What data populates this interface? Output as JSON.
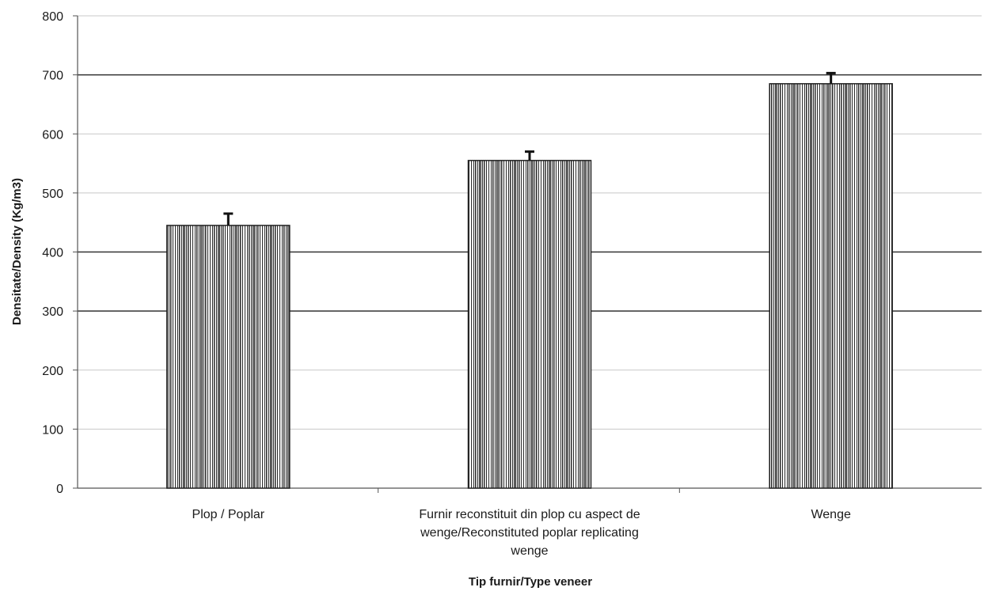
{
  "chart_data": {
    "type": "bar",
    "title": "",
    "xlabel": "Tip furnir/Type veneer",
    "ylabel": "Densitate/Density (Kg/m3)",
    "categories": [
      [
        "Plop / Poplar"
      ],
      [
        "Furnir reconstituit din plop cu aspect de",
        "wenge/Reconstituted poplar replicating",
        "wenge"
      ],
      [
        "Wenge"
      ]
    ],
    "values": [
      445,
      555,
      685
    ],
    "errors": [
      20,
      15,
      18
    ],
    "ylim": [
      0,
      800
    ],
    "yticks": [
      0,
      100,
      200,
      300,
      400,
      500,
      600,
      700,
      800
    ],
    "grid": true,
    "legend": "none",
    "colors": {
      "bar_fill": "#ffffff",
      "bar_stripe": "#2b2b2b",
      "grid_major": "#333333",
      "grid_minor": "#c8c8c8",
      "axis": "#555555"
    }
  }
}
